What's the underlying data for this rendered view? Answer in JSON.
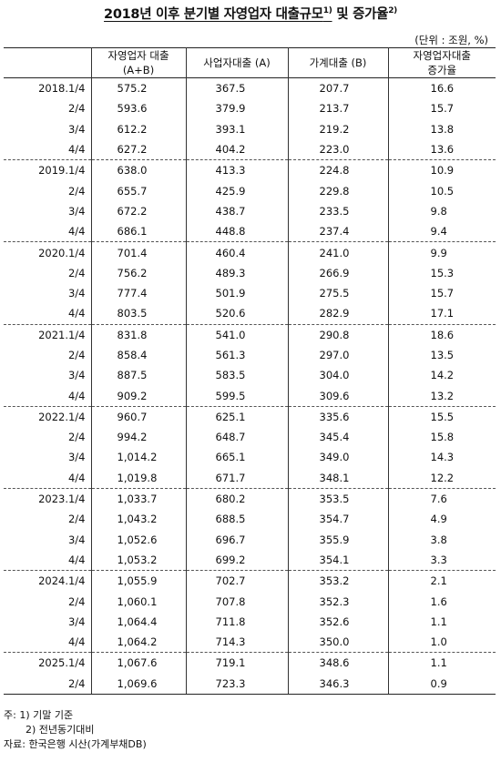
{
  "title": {
    "main": "2018년 이후 분기별 자영업자 대출규모",
    "sup1": "1)",
    "mid": " 및 증가율",
    "sup2": "2)"
  },
  "unit": "(단위 : 조원, %)",
  "headers": {
    "total": "자영업자 대출",
    "total_sub": "(A+B)",
    "business": "사업자대출 (A)",
    "household": "가계대출 (B)",
    "growth_line1": "자영업자대출",
    "growth_line2": "증가율"
  },
  "rows": [
    [
      "2018.1/4",
      "575.2",
      "367.5",
      "207.7",
      "16.6"
    ],
    [
      "2/4",
      "593.6",
      "379.9",
      "213.7",
      "15.7"
    ],
    [
      "3/4",
      "612.2",
      "393.1",
      "219.2",
      "13.8"
    ],
    [
      "4/4",
      "627.2",
      "404.2",
      "223.0",
      "13.6"
    ],
    [
      "2019.1/4",
      "638.0",
      "413.3",
      "224.8",
      "10.9"
    ],
    [
      "2/4",
      "655.7",
      "425.9",
      "229.8",
      "10.5"
    ],
    [
      "3/4",
      "672.2",
      "438.7",
      "233.5",
      "9.8"
    ],
    [
      "4/4",
      "686.1",
      "448.8",
      "237.4",
      "9.4"
    ],
    [
      "2020.1/4",
      "701.4",
      "460.4",
      "241.0",
      "9.9"
    ],
    [
      "2/4",
      "756.2",
      "489.3",
      "266.9",
      "15.3"
    ],
    [
      "3/4",
      "777.4",
      "501.9",
      "275.5",
      "15.7"
    ],
    [
      "4/4",
      "803.5",
      "520.6",
      "282.9",
      "17.1"
    ],
    [
      "2021.1/4",
      "831.8",
      "541.0",
      "290.8",
      "18.6"
    ],
    [
      "2/4",
      "858.4",
      "561.3",
      "297.0",
      "13.5"
    ],
    [
      "3/4",
      "887.5",
      "583.5",
      "304.0",
      "14.2"
    ],
    [
      "4/4",
      "909.2",
      "599.5",
      "309.6",
      "13.2"
    ],
    [
      "2022.1/4",
      "960.7",
      "625.1",
      "335.6",
      "15.5"
    ],
    [
      "2/4",
      "994.2",
      "648.7",
      "345.4",
      "15.8"
    ],
    [
      "3/4",
      "1,014.2",
      "665.1",
      "349.0",
      "14.3"
    ],
    [
      "4/4",
      "1,019.8",
      "671.7",
      "348.1",
      "12.2"
    ],
    [
      "2023.1/4",
      "1,033.7",
      "680.2",
      "353.5",
      "7.6"
    ],
    [
      "2/4",
      "1,043.2",
      "688.5",
      "354.7",
      "4.9"
    ],
    [
      "3/4",
      "1,052.6",
      "696.7",
      "355.9",
      "3.8"
    ],
    [
      "4/4",
      "1,053.2",
      "699.2",
      "354.1",
      "3.3"
    ],
    [
      "2024.1/4",
      "1,055.9",
      "702.7",
      "353.2",
      "2.1"
    ],
    [
      "2/4",
      "1,060.1",
      "707.8",
      "352.3",
      "1.6"
    ],
    [
      "3/4",
      "1,064.4",
      "711.8",
      "352.6",
      "1.1"
    ],
    [
      "4/4",
      "1,064.2",
      "714.3",
      "350.0",
      "1.0"
    ],
    [
      "2025.1/4",
      "1,067.6",
      "719.1",
      "348.6",
      "1.1"
    ],
    [
      "2/4",
      "1,069.6",
      "723.3",
      "346.3",
      "0.9"
    ]
  ],
  "notes": {
    "note1": "주: 1) 기말 기준",
    "note2": "2) 전년동기대비",
    "source": "자료: 한국은행 시산(가계부채DB)"
  }
}
